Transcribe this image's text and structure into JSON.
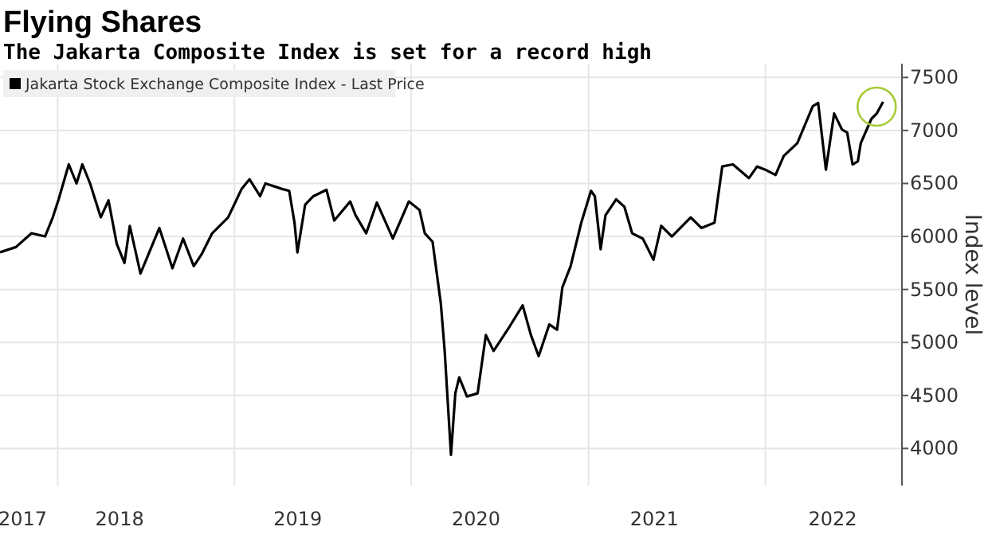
{
  "chart_data": {
    "type": "line",
    "title": "Flying Shares",
    "subtitle": "The Jakarta Composite Index is set for a record high",
    "ylabel": "Index level",
    "x": [
      "2017-09-04",
      "2017-10-07",
      "2017-11-08",
      "2017-12-06",
      "2017-12-22",
      "2018-01-03",
      "2018-01-24",
      "2018-02-09",
      "2018-02-21",
      "2018-03-09",
      "2018-03-31",
      "2018-04-16",
      "2018-05-03",
      "2018-05-19",
      "2018-05-30",
      "2018-06-21",
      "2018-07-30",
      "2018-08-26",
      "2018-09-17",
      "2018-10-09",
      "2018-10-25",
      "2018-11-16",
      "2018-12-19",
      "2019-01-16",
      "2019-02-01",
      "2019-02-23",
      "2019-03-06",
      "2019-04-08",
      "2019-04-24",
      "2019-05-05",
      "2019-05-11",
      "2019-05-27",
      "2019-06-13",
      "2019-07-10",
      "2019-07-26",
      "2019-08-28",
      "2019-09-08",
      "2019-09-30",
      "2019-10-22",
      "2019-11-24",
      "2019-12-27",
      "2020-01-18",
      "2020-01-29",
      "2020-02-14",
      "2020-03-02",
      "2020-03-10",
      "2020-03-23",
      "2020-04-01",
      "2020-04-09",
      "2020-04-25",
      "2020-05-17",
      "2020-06-03",
      "2020-06-19",
      "2020-07-22",
      "2020-08-18",
      "2020-09-04",
      "2020-09-20",
      "2020-10-12",
      "2020-10-28",
      "2020-11-08",
      "2020-11-25",
      "2020-12-17",
      "2021-01-06",
      "2021-01-14",
      "2021-01-26",
      "2021-02-05",
      "2021-02-27",
      "2021-03-16",
      "2021-04-01",
      "2021-04-23",
      "2021-05-15",
      "2021-05-31",
      "2021-06-22",
      "2021-07-31",
      "2021-08-22",
      "2021-09-18",
      "2021-10-04",
      "2021-10-26",
      "2021-11-28",
      "2021-12-15",
      "2022-01-01",
      "2022-01-22",
      "2022-02-08",
      "2022-03-08",
      "2022-04-09",
      "2022-04-20",
      "2022-05-06",
      "2022-05-23",
      "2022-06-08",
      "2022-06-19",
      "2022-06-30",
      "2022-07-11",
      "2022-07-17",
      "2022-08-08",
      "2022-08-19",
      "2022-09-01"
    ],
    "series": [
      {
        "name": "Jakarta Stock Exchange Composite Index - Last Price",
        "color": "#000000",
        "values": [
          5850,
          5900,
          6030,
          6000,
          6180,
          6350,
          6680,
          6500,
          6680,
          6500,
          6180,
          6340,
          5930,
          5750,
          6100,
          5650,
          6080,
          5700,
          5980,
          5720,
          5830,
          6030,
          6180,
          6450,
          6540,
          6380,
          6500,
          6450,
          6430,
          6130,
          5850,
          6300,
          6380,
          6440,
          6150,
          6330,
          6200,
          6030,
          6320,
          5980,
          6330,
          6250,
          6030,
          5950,
          5370,
          4920,
          3940,
          4520,
          4670,
          4490,
          4520,
          5070,
          4920,
          5150,
          5350,
          5070,
          4870,
          5170,
          5120,
          5520,
          5720,
          6130,
          6430,
          6380,
          5880,
          6200,
          6350,
          6280,
          6030,
          5980,
          5780,
          6100,
          6000,
          6180,
          6080,
          6130,
          6660,
          6680,
          6550,
          6660,
          6630,
          6580,
          6760,
          6880,
          7230,
          7260,
          6630,
          7160,
          7010,
          6980,
          6680,
          6710,
          6880,
          7110,
          7160,
          7270
        ]
      }
    ],
    "xlim": [
      "2017-09-04",
      "2022-10-10"
    ],
    "xticks": [
      {
        "value": "2017-10-21",
        "label": "2017"
      },
      {
        "value": "2018-05-09",
        "label": "2018"
      },
      {
        "value": "2019-05-12",
        "label": "2019"
      },
      {
        "value": "2020-05-14",
        "label": "2020"
      },
      {
        "value": "2021-05-17",
        "label": "2021"
      },
      {
        "value": "2022-05-20",
        "label": "2022"
      },
      {
        "value": "2018-01-01",
        "label": null
      },
      {
        "value": "2019-01-01",
        "label": null
      },
      {
        "value": "2020-01-01",
        "label": null
      },
      {
        "value": "2021-01-01",
        "label": null
      },
      {
        "value": "2022-01-01",
        "label": null
      }
    ],
    "ylim": [
      3650,
      7630
    ],
    "yticks": [
      4000,
      4500,
      5000,
      5500,
      6000,
      6500,
      7000,
      7500
    ],
    "grid": true,
    "legend": "top left",
    "marker": "none",
    "line_style": "solid"
  }
}
